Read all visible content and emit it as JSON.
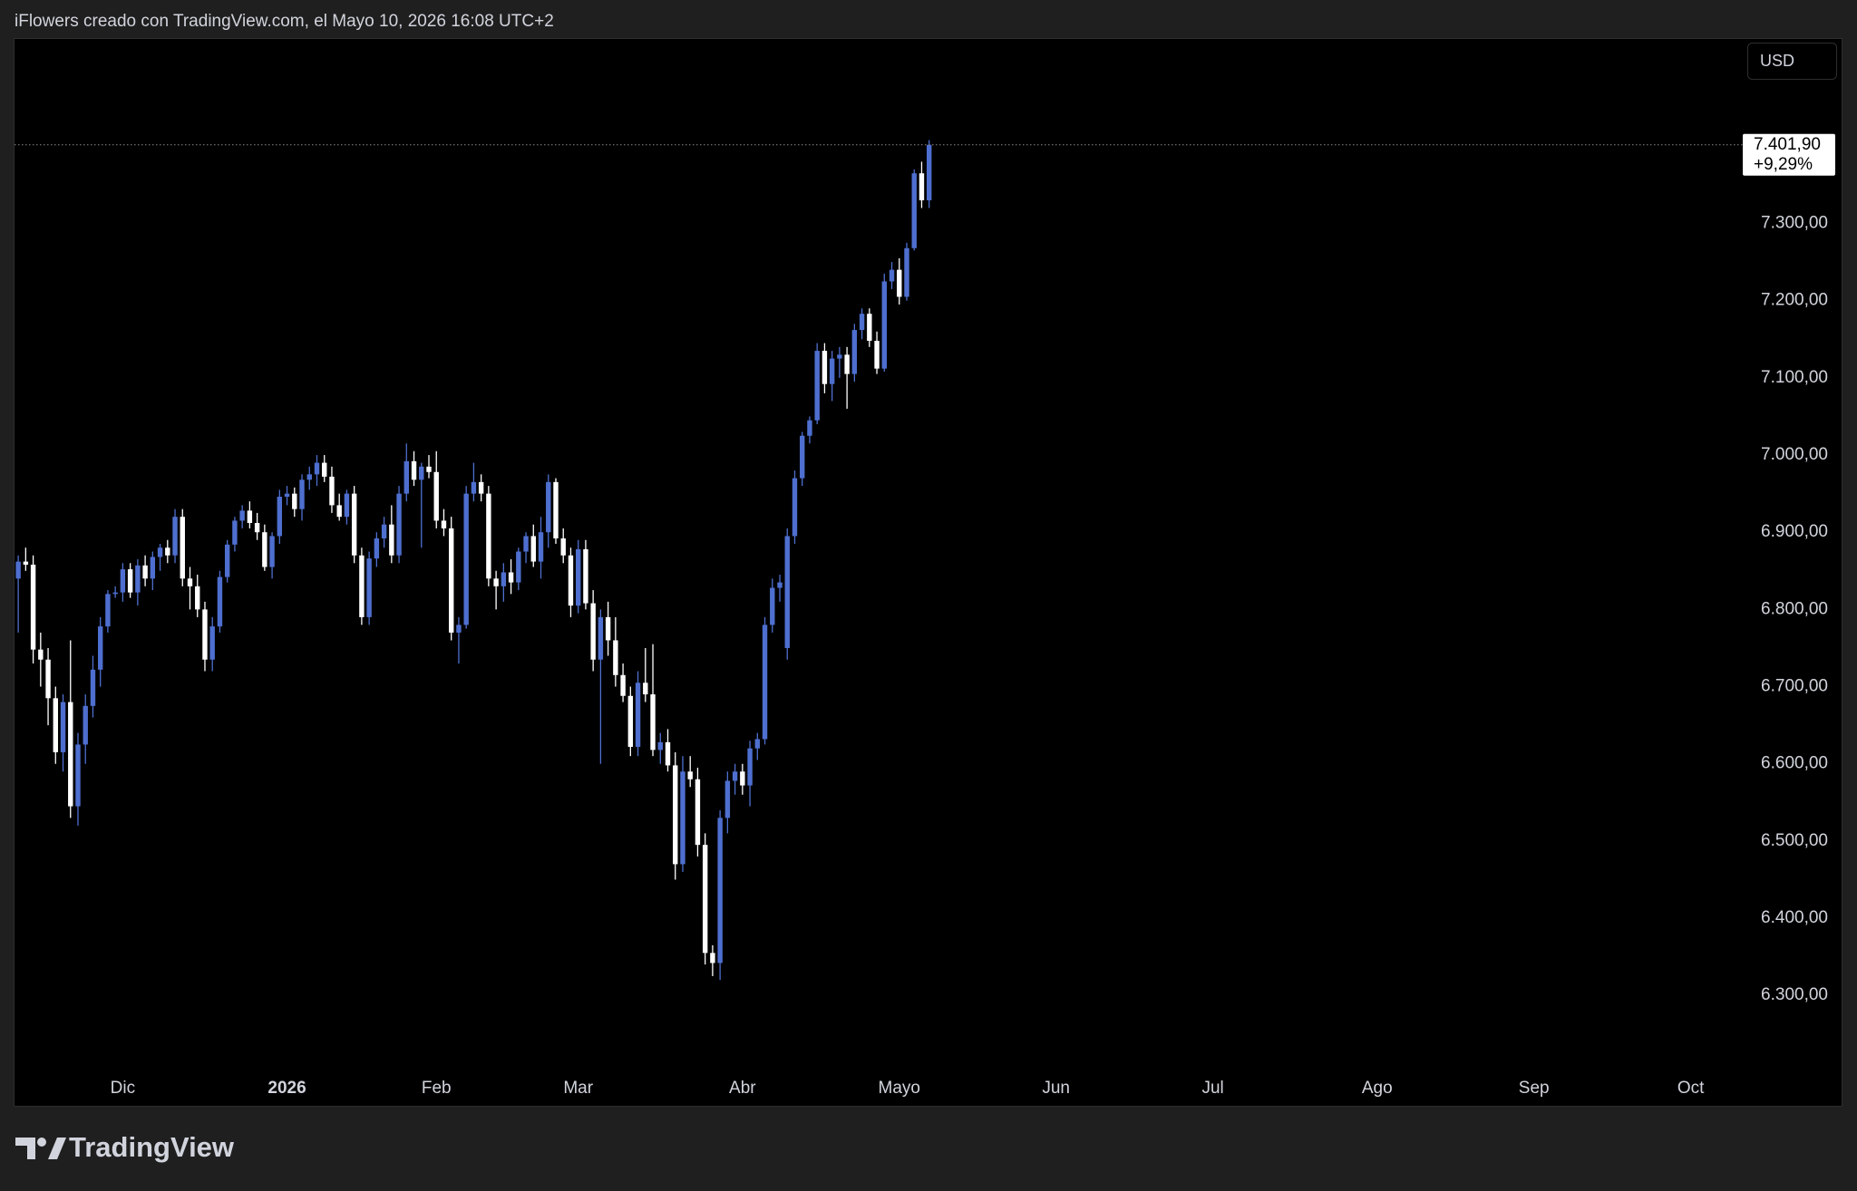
{
  "header": {
    "text": "iFlowers creado con TradingView.com, el Mayo 10, 2026 16:08 UTC+2"
  },
  "footer": {
    "brand": "TradingView"
  },
  "chart_data": {
    "type": "candlestick",
    "currency": "USD",
    "up_color": "#4e6fcf",
    "down_color": "#ffffff",
    "last_price": {
      "value": 7401.9,
      "label": "7.401,90"
    },
    "change_label": "+9,29%",
    "xlim": [
      -0.5,
      230
    ],
    "xticks": [
      {
        "value": 14,
        "label": "Dic"
      },
      {
        "value": 36,
        "label": "2026"
      },
      {
        "value": 56,
        "label": "Feb"
      },
      {
        "value": 75,
        "label": "Mar"
      },
      {
        "value": 97,
        "label": "Abr"
      },
      {
        "value": 118,
        "label": "Mayo"
      },
      {
        "value": 139,
        "label": "Jun"
      },
      {
        "value": 160,
        "label": "Jul"
      },
      {
        "value": 182,
        "label": "Ago"
      },
      {
        "value": 203,
        "label": "Sep"
      },
      {
        "value": 224,
        "label": "Oct"
      }
    ],
    "ylim": [
      6157,
      7539
    ],
    "yticks": [
      {
        "value": 6300,
        "label": "6.300,00"
      },
      {
        "value": 6400,
        "label": "6.400,00"
      },
      {
        "value": 6500,
        "label": "6.500,00"
      },
      {
        "value": 6600,
        "label": "6.600,00"
      },
      {
        "value": 6700,
        "label": "6.700,00"
      },
      {
        "value": 6800,
        "label": "6.800,00"
      },
      {
        "value": 6900,
        "label": "6.900,00"
      },
      {
        "value": 7000,
        "label": "7.000,00"
      },
      {
        "value": 7100,
        "label": "7.100,00"
      },
      {
        "value": 7200,
        "label": "7.200,00"
      },
      {
        "value": 7300,
        "label": "7.300,00"
      }
    ],
    "candles": [
      [
        6840,
        6870,
        6770,
        6862
      ],
      [
        6862,
        6880,
        6850,
        6858
      ],
      [
        6858,
        6870,
        6730,
        6748
      ],
      [
        6748,
        6770,
        6700,
        6735
      ],
      [
        6735,
        6750,
        6650,
        6685
      ],
      [
        6685,
        6700,
        6600,
        6615
      ],
      [
        6615,
        6690,
        6590,
        6680
      ],
      [
        6680,
        6760,
        6530,
        6545
      ],
      [
        6545,
        6640,
        6520,
        6625
      ],
      [
        6625,
        6690,
        6600,
        6675
      ],
      [
        6675,
        6740,
        6660,
        6722
      ],
      [
        6722,
        6790,
        6700,
        6778
      ],
      [
        6778,
        6825,
        6770,
        6820
      ],
      [
        6820,
        6830,
        6815,
        6822
      ],
      [
        6822,
        6860,
        6810,
        6852
      ],
      [
        6852,
        6860,
        6815,
        6822
      ],
      [
        6822,
        6865,
        6805,
        6857
      ],
      [
        6857,
        6870,
        6830,
        6840
      ],
      [
        6840,
        6875,
        6825,
        6868
      ],
      [
        6868,
        6885,
        6850,
        6880
      ],
      [
        6880,
        6890,
        6860,
        6870
      ],
      [
        6870,
        6930,
        6860,
        6920
      ],
      [
        6920,
        6930,
        6830,
        6840
      ],
      [
        6840,
        6855,
        6800,
        6830
      ],
      [
        6830,
        6845,
        6790,
        6800
      ],
      [
        6800,
        6810,
        6720,
        6735
      ],
      [
        6735,
        6790,
        6720,
        6778
      ],
      [
        6778,
        6850,
        6770,
        6842
      ],
      [
        6842,
        6890,
        6835,
        6884
      ],
      [
        6884,
        6920,
        6875,
        6915
      ],
      [
        6915,
        6935,
        6905,
        6928
      ],
      [
        6928,
        6940,
        6905,
        6912
      ],
      [
        6912,
        6925,
        6890,
        6900
      ],
      [
        6900,
        6910,
        6850,
        6855
      ],
      [
        6855,
        6900,
        6840,
        6895
      ],
      [
        6895,
        6955,
        6885,
        6946
      ],
      [
        6946,
        6960,
        6935,
        6950
      ],
      [
        6950,
        6958,
        6920,
        6930
      ],
      [
        6930,
        6975,
        6915,
        6968
      ],
      [
        6968,
        6985,
        6955,
        6975
      ],
      [
        6975,
        7000,
        6960,
        6990
      ],
      [
        6990,
        7000,
        6965,
        6972
      ],
      [
        6972,
        6985,
        6925,
        6935
      ],
      [
        6935,
        6950,
        6915,
        6920
      ],
      [
        6920,
        6955,
        6910,
        6950
      ],
      [
        6950,
        6960,
        6860,
        6870
      ],
      [
        6870,
        6880,
        6780,
        6790
      ],
      [
        6790,
        6875,
        6780,
        6866
      ],
      [
        6866,
        6900,
        6855,
        6892
      ],
      [
        6892,
        6920,
        6880,
        6910
      ],
      [
        6910,
        6935,
        6860,
        6870
      ],
      [
        6870,
        6960,
        6860,
        6950
      ],
      [
        6950,
        7015,
        6940,
        6992
      ],
      [
        6992,
        7005,
        6960,
        6968
      ],
      [
        6968,
        6990,
        6880,
        6985
      ],
      [
        6985,
        7000,
        6970,
        6978
      ],
      [
        6978,
        7005,
        6905,
        6915
      ],
      [
        6915,
        6930,
        6895,
        6905
      ],
      [
        6905,
        6920,
        6760,
        6770
      ],
      [
        6770,
        6790,
        6730,
        6780
      ],
      [
        6780,
        6960,
        6775,
        6950
      ],
      [
        6950,
        6990,
        6940,
        6965
      ],
      [
        6965,
        6975,
        6940,
        6950
      ],
      [
        6950,
        6960,
        6830,
        6840
      ],
      [
        6840,
        6850,
        6800,
        6830
      ],
      [
        6830,
        6860,
        6810,
        6848
      ],
      [
        6848,
        6865,
        6820,
        6835
      ],
      [
        6835,
        6880,
        6825,
        6875
      ],
      [
        6875,
        6900,
        6860,
        6895
      ],
      [
        6895,
        6910,
        6855,
        6862
      ],
      [
        6862,
        6920,
        6840,
        6900
      ],
      [
        6900,
        6975,
        6880,
        6965
      ],
      [
        6965,
        6970,
        6885,
        6892
      ],
      [
        6892,
        6905,
        6860,
        6870
      ],
      [
        6870,
        6880,
        6790,
        6805
      ],
      [
        6805,
        6890,
        6795,
        6878
      ],
      [
        6878,
        6890,
        6800,
        6808
      ],
      [
        6808,
        6825,
        6720,
        6735
      ],
      [
        6735,
        6800,
        6600,
        6790
      ],
      [
        6790,
        6810,
        6740,
        6760
      ],
      [
        6760,
        6790,
        6700,
        6715
      ],
      [
        6715,
        6730,
        6680,
        6688
      ],
      [
        6688,
        6700,
        6610,
        6622
      ],
      [
        6622,
        6720,
        6610,
        6705
      ],
      [
        6705,
        6750,
        6680,
        6690
      ],
      [
        6690,
        6755,
        6610,
        6618
      ],
      [
        6618,
        6640,
        6600,
        6628
      ],
      [
        6628,
        6645,
        6590,
        6598
      ],
      [
        6598,
        6615,
        6450,
        6470
      ],
      [
        6470,
        6610,
        6460,
        6590
      ],
      [
        6590,
        6610,
        6570,
        6580
      ],
      [
        6580,
        6595,
        6480,
        6495
      ],
      [
        6495,
        6510,
        6340,
        6355
      ],
      [
        6355,
        6365,
        6325,
        6342
      ],
      [
        6342,
        6540,
        6320,
        6530
      ],
      [
        6530,
        6590,
        6510,
        6578
      ],
      [
        6578,
        6600,
        6560,
        6590
      ],
      [
        6590,
        6600,
        6560,
        6572
      ],
      [
        6572,
        6630,
        6545,
        6620
      ],
      [
        6620,
        6640,
        6605,
        6632
      ],
      [
        6632,
        6790,
        6625,
        6780
      ],
      [
        6780,
        6840,
        6770,
        6828
      ],
      [
        6828,
        6845,
        6810,
        6835
      ],
      [
        6750,
        6905,
        6735,
        6895
      ],
      [
        6895,
        6980,
        6885,
        6970
      ],
      [
        6970,
        7030,
        6960,
        7025
      ],
      [
        7025,
        7050,
        7015,
        7045
      ],
      [
        7045,
        7145,
        7040,
        7135
      ],
      [
        7135,
        7145,
        7080,
        7092
      ],
      [
        7092,
        7135,
        7070,
        7125
      ],
      [
        7125,
        7140,
        7100,
        7130
      ],
      [
        7130,
        7140,
        7060,
        7105
      ],
      [
        7105,
        7170,
        7095,
        7162
      ],
      [
        7162,
        7190,
        7150,
        7183
      ],
      [
        7183,
        7190,
        7140,
        7148
      ],
      [
        7148,
        7160,
        7105,
        7112
      ],
      [
        7112,
        7235,
        7108,
        7225
      ],
      [
        7225,
        7250,
        7215,
        7240
      ],
      [
        7240,
        7255,
        7195,
        7205
      ],
      [
        7205,
        7275,
        7200,
        7268
      ],
      [
        7268,
        7370,
        7265,
        7365
      ],
      [
        7365,
        7380,
        7320,
        7330
      ],
      [
        7330,
        7408,
        7320,
        7401.9
      ]
    ]
  }
}
